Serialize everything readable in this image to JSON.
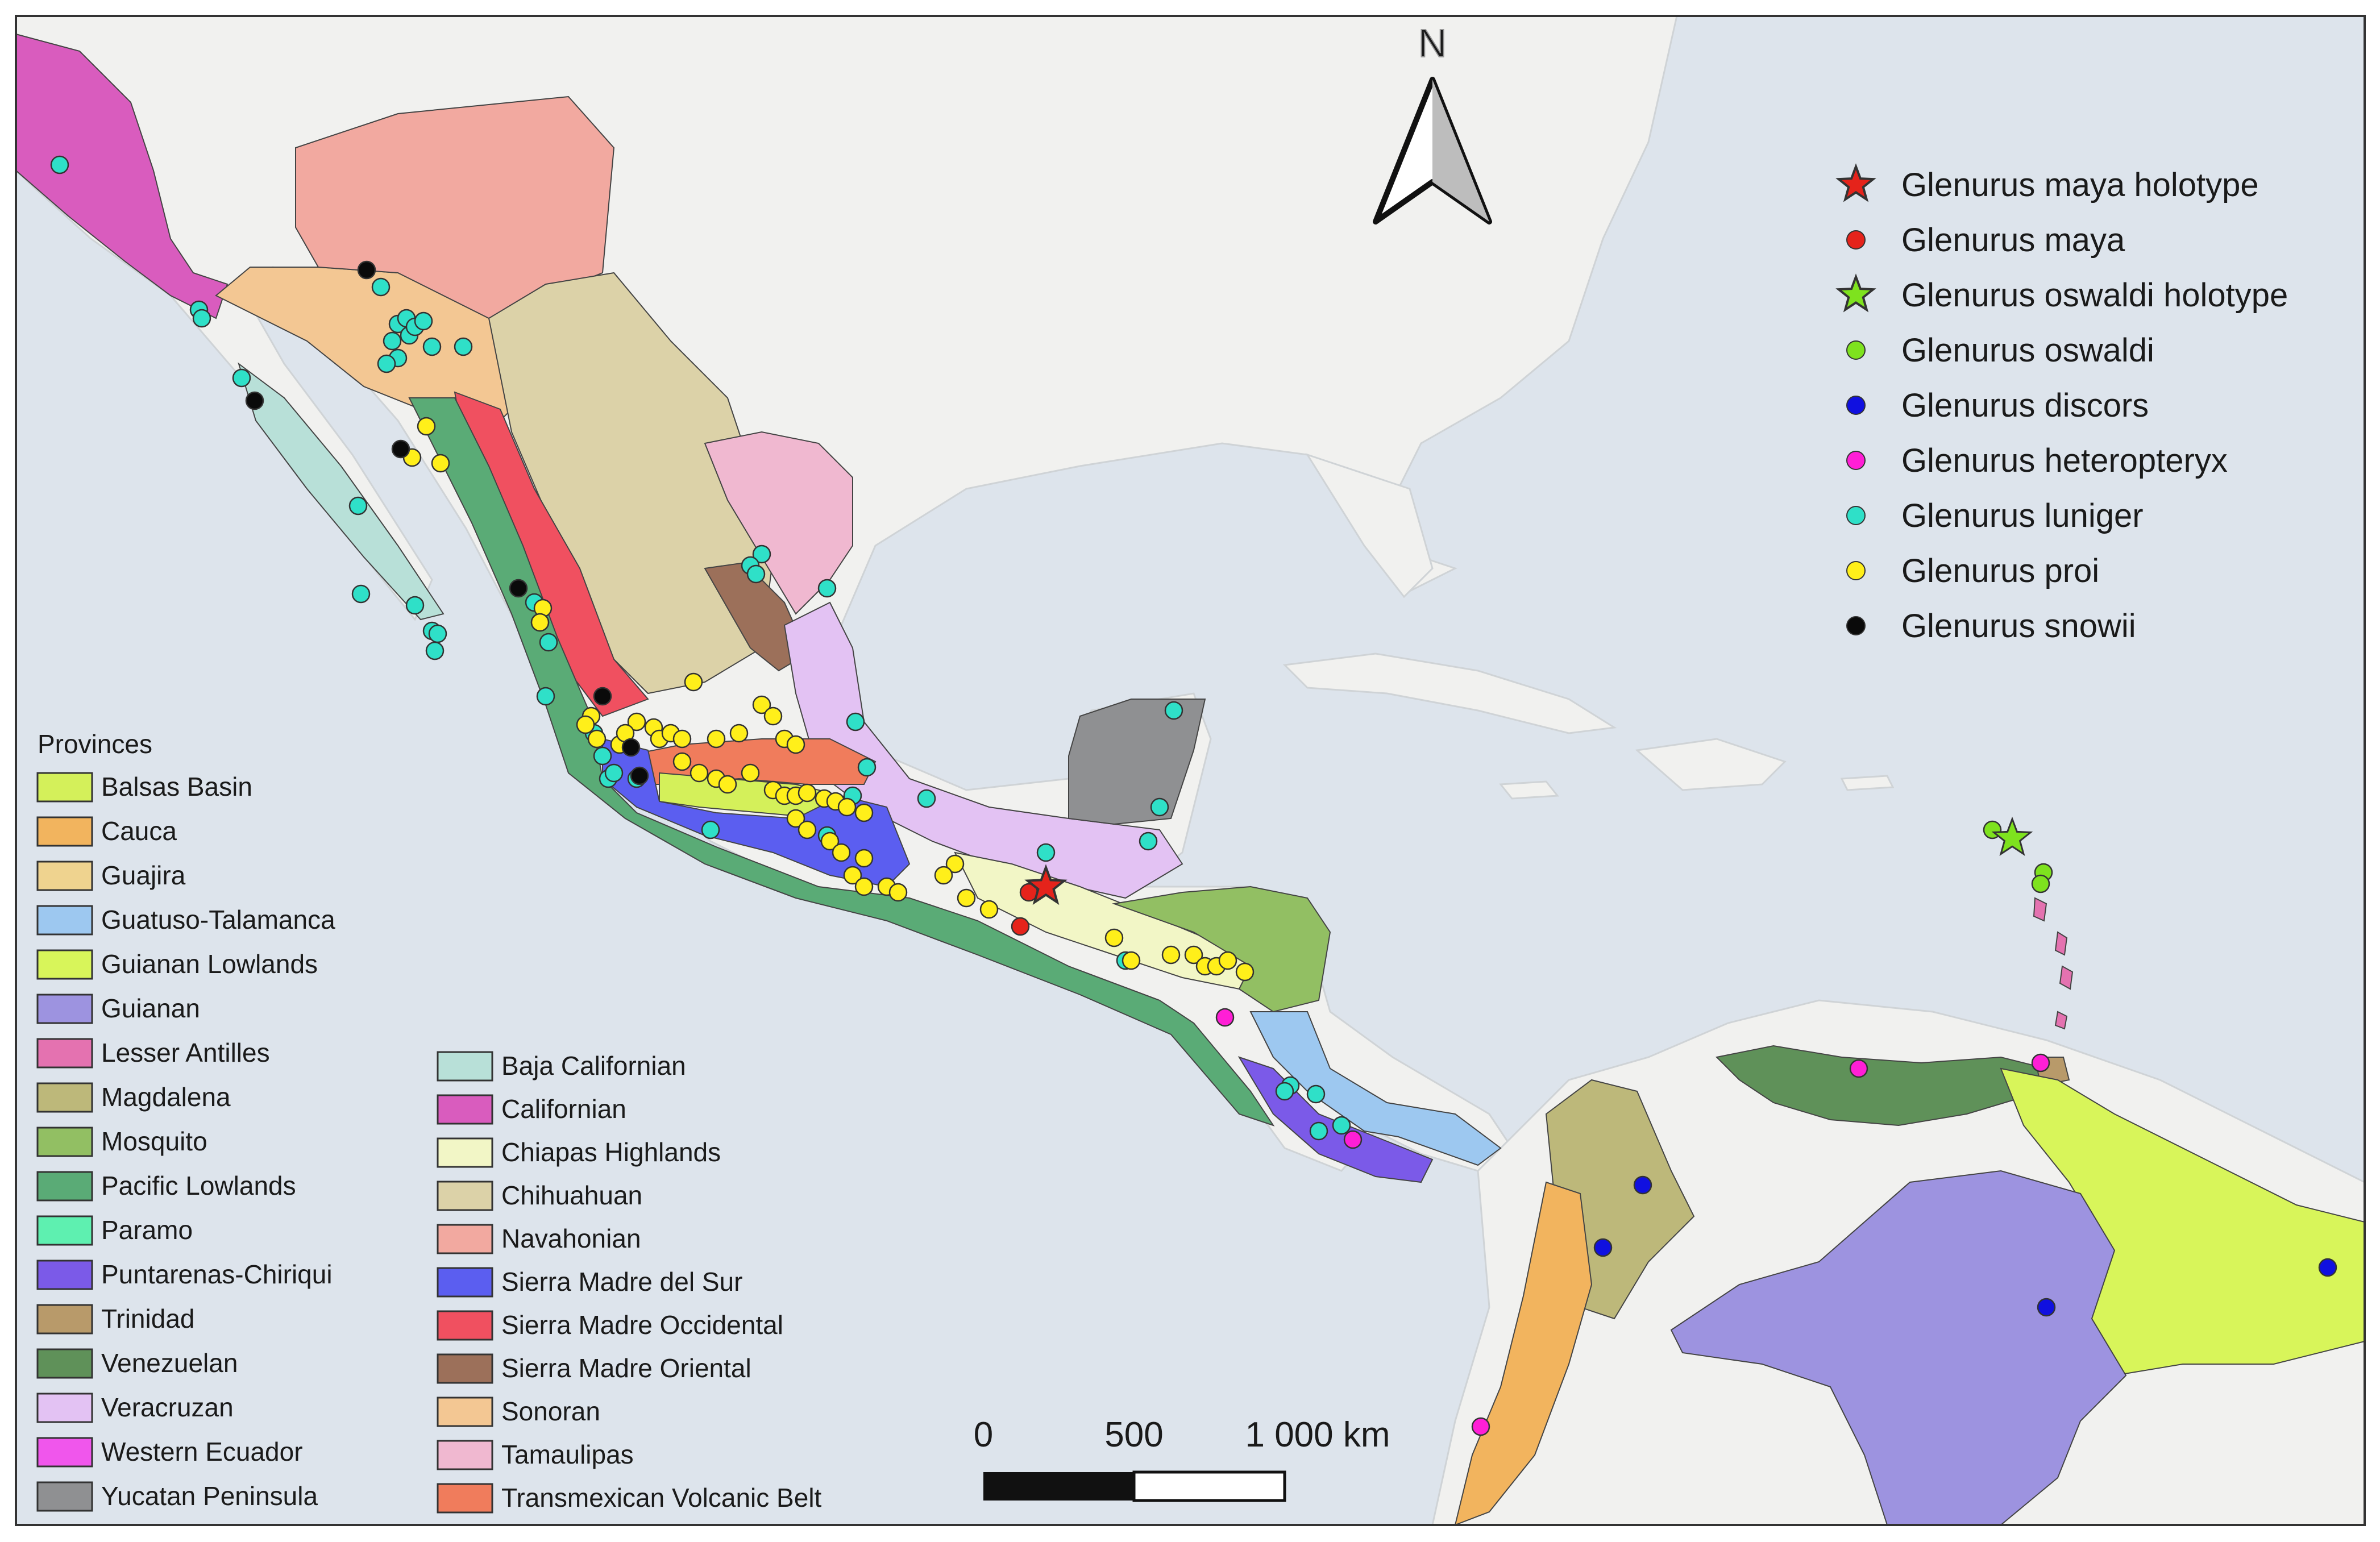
{
  "north_arrow": {
    "label": "N"
  },
  "species_legend": [
    {
      "label": "Glenurus maya holotype",
      "symbol": "star",
      "color": "#e5231b"
    },
    {
      "label": "Glenurus maya",
      "symbol": "dot",
      "color": "#e5231b"
    },
    {
      "label": "Glenurus oswaldi  holotype",
      "symbol": "star",
      "color": "#7ee21e"
    },
    {
      "label": "Glenurus oswaldi",
      "symbol": "dot",
      "color": "#7ee21e"
    },
    {
      "label": "Glenurus discors",
      "symbol": "dot",
      "color": "#1010e0"
    },
    {
      "label": "Glenurus heteropteryx",
      "symbol": "dot",
      "color": "#ff1fd6"
    },
    {
      "label": "Glenurus luniger",
      "symbol": "dot",
      "color": "#2fe0c8"
    },
    {
      "label": "Glenurus proi",
      "symbol": "dot",
      "color": "#ffef1a"
    },
    {
      "label": "Glenurus snowii",
      "symbol": "dot",
      "color": "#0a0a0a"
    }
  ],
  "provinces_legend": {
    "title": "Provinces",
    "column1": [
      {
        "label": "Balsas Basin",
        "color": "#d4f05a"
      },
      {
        "label": "Cauca",
        "color": "#f2b45e"
      },
      {
        "label": "Guajira",
        "color": "#efd38f"
      },
      {
        "label": "Guatuso-Talamanca",
        "color": "#9dc8f0"
      },
      {
        "label": "Guianan Lowlands",
        "color": "#d8f55a"
      },
      {
        "label": "Guianan",
        "color": "#9d93e0"
      },
      {
        "label": "Lesser Antilles",
        "color": "#e472b0"
      },
      {
        "label": "Magdalena",
        "color": "#bdb87a"
      },
      {
        "label": "Mosquito",
        "color": "#92bf63"
      },
      {
        "label": "Pacific Lowlands",
        "color": "#5aab76"
      },
      {
        "label": "Paramo",
        "color": "#5ef0b0"
      },
      {
        "label": "Puntarenas-Chiriqui",
        "color": "#7b5ae8"
      },
      {
        "label": "Trinidad",
        "color": "#b89a6a"
      },
      {
        "label": "Venezuelan",
        "color": "#5f9159"
      },
      {
        "label": "Veracruzan",
        "color": "#e3c2f3"
      },
      {
        "label": "Western Ecuador",
        "color": "#f056ec"
      },
      {
        "label": "Yucatan Peninsula",
        "color": "#8f9092"
      }
    ],
    "column2": [
      {
        "label": "Baja Californian",
        "color": "#b8e0d8"
      },
      {
        "label": "Californian",
        "color": "#d95cbe"
      },
      {
        "label": "Chiapas Highlands",
        "color": "#f2f6c6"
      },
      {
        "label": "Chihuahuan",
        "color": "#dcd2a8"
      },
      {
        "label": "Navahonian",
        "color": "#f2a9a0"
      },
      {
        "label": "Sierra Madre del Sur",
        "color": "#5b5ef0"
      },
      {
        "label": "Sierra Madre Occidental",
        "color": "#f05060"
      },
      {
        "label": "Sierra Madre Oriental",
        "color": "#9c705a"
      },
      {
        "label": "Sonoran",
        "color": "#f3c793"
      },
      {
        "label": "Tamaulipas",
        "color": "#f0b8d0"
      },
      {
        "label": "Transmexican Volcanic Belt",
        "color": "#f07c5c"
      }
    ]
  },
  "scale_bar": {
    "ticks": [
      "0",
      "500",
      "1 000 km"
    ]
  },
  "colors": {
    "ocean": "#dde4ec",
    "land": "#f1f1ef",
    "border": "#333333"
  }
}
